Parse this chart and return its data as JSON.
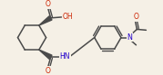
{
  "bg_color": "#f5f0e6",
  "bond_color": "#4a4a4a",
  "O_color": "#cc2200",
  "N_color": "#2200cc",
  "lw": 1.1,
  "figsize": [
    1.79,
    0.83
  ],
  "dpi": 100,
  "xlim": [
    0,
    179
  ],
  "ylim": [
    0,
    83
  ]
}
